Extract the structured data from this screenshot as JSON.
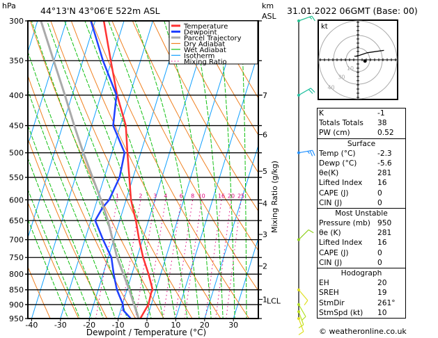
{
  "header": {
    "pressure_unit": "hPa",
    "location": "44°13'N  43°06'E  522m  ASL",
    "height_unit_line1": "km",
    "height_unit_line2": "ASL",
    "datetime": "31.01.2022  06GMT  (Base: 00)"
  },
  "chart_data": {
    "type": "line",
    "subtype": "skew-T log-P",
    "xlabel": "Dewpoint / Temperature (°C)",
    "ylabel": "hPa",
    "right_label": "Mixing Ratio (g/kg)",
    "xlim": [
      -40,
      38
    ],
    "ylim_hpa": [
      950,
      300
    ],
    "x_ticks": [
      -40,
      -30,
      -20,
      -10,
      0,
      10,
      20,
      30
    ],
    "x_tick_labels": [
      "-40",
      "-30",
      "-20",
      "-10",
      "0",
      "10",
      "20",
      "30"
    ],
    "pressure_levels": [
      300,
      350,
      400,
      450,
      500,
      550,
      600,
      650,
      700,
      750,
      800,
      850,
      900,
      950
    ],
    "pressure_labels": [
      "300",
      "350",
      "400",
      "450",
      "500",
      "550",
      "600",
      "650",
      "700",
      "750",
      "800",
      "850",
      "900",
      "950"
    ],
    "km_levels": [
      {
        "label": "7",
        "p": 400
      },
      {
        "label": "6",
        "p": 466
      },
      {
        "label": "5",
        "p": 537
      },
      {
        "label": "4",
        "p": 608
      },
      {
        "label": "3",
        "p": 686
      },
      {
        "label": "2",
        "p": 775
      },
      {
        "label": "1",
        "p": 882
      }
    ],
    "lcl_label": "LCL",
    "mixing_ratio_labels": [
      "1",
      "2",
      "3",
      "4",
      "6",
      "8",
      "10",
      "16",
      "20",
      "25"
    ],
    "mixing_ratio_values": [
      1,
      2,
      3,
      4,
      6,
      8,
      10,
      16,
      20,
      25
    ],
    "legend": [
      {
        "label": "Temperature",
        "color": "#ff3333"
      },
      {
        "label": "Dewpoint",
        "color": "#2040ff"
      },
      {
        "label": "Parcel Trajectory",
        "color": "#aaaaaa"
      },
      {
        "label": "Dry Adiabat",
        "color": "#f08020"
      },
      {
        "label": "Wet Adiabat",
        "color": "#10c010"
      },
      {
        "label": "Isotherm",
        "color": "#10a0ff"
      },
      {
        "label": "Mixing Ratio",
        "color": "#e0007a"
      }
    ],
    "series": [
      {
        "name": "Temperature",
        "color": "#ff3333",
        "p": [
          950,
          930,
          900,
          860,
          850,
          800,
          750,
          700,
          650,
          600,
          550,
          500,
          450,
          400,
          350,
          300
        ],
        "t": [
          -2.3,
          -1.8,
          -1.0,
          -1.3,
          -1.1,
          -4.2,
          -7.9,
          -11.2,
          -14.4,
          -18.3,
          -21.3,
          -24.6,
          -28.1,
          -34.4,
          -40.3,
          -47.0
        ]
      },
      {
        "name": "Dewpoint",
        "color": "#2040ff",
        "p": [
          950,
          920,
          900,
          850,
          800,
          750,
          700,
          650,
          620,
          600,
          550,
          500,
          450,
          400,
          350,
          300
        ],
        "t": [
          -5.6,
          -9.1,
          -9.8,
          -13.5,
          -16.3,
          -18.9,
          -23.7,
          -28.5,
          -27.4,
          -25.9,
          -24.7,
          -25.6,
          -32.5,
          -34.6,
          -43.0,
          -51.5
        ]
      },
      {
        "name": "Parcel Trajectory",
        "color": "#aaaaaa",
        "p": [
          950,
          850,
          750,
          650,
          600,
          500,
          450,
          400,
          350,
          300
        ],
        "t": [
          -2.9,
          -9.2,
          -16.9,
          -24.1,
          -28.7,
          -39.9,
          -46.0,
          -52.5,
          -60.1,
          -68.8
        ]
      }
    ],
    "wind_barbs": [
      {
        "p": 300,
        "dir": 250,
        "speed_kt": 15,
        "color": "#20c090"
      },
      {
        "p": 400,
        "dir": 240,
        "speed_kt": 20,
        "color": "#20c0a0"
      },
      {
        "p": 500,
        "dir": 260,
        "speed_kt": 25,
        "color": "#2090ff"
      },
      {
        "p": 700,
        "dir": 225,
        "speed_kt": 10,
        "color": "#90d020"
      },
      {
        "p": 850,
        "dir": 320,
        "speed_kt": 10,
        "color": "#e0e020"
      },
      {
        "p": 900,
        "dir": 330,
        "speed_kt": 10,
        "color": "#b0e020"
      },
      {
        "p": 925,
        "dir": 340,
        "speed_kt": 10,
        "color": "#c0e020"
      },
      {
        "p": 950,
        "dir": 340,
        "speed_kt": 10,
        "color": "#e0e020"
      }
    ],
    "hodograph": {
      "unit_label": "kt",
      "ring_labels": [
        "10",
        "30",
        "40"
      ],
      "trace_kt": [
        [
          -3,
          3
        ],
        [
          -1,
          3
        ],
        [
          8,
          6
        ],
        [
          22,
          8
        ]
      ],
      "storm_motion_kt": [
        6,
        -1
      ]
    }
  },
  "indices": {
    "general": [
      {
        "label": "K",
        "value": "-1"
      },
      {
        "label": "Totals Totals",
        "value": "38"
      },
      {
        "label": "PW (cm)",
        "value": "0.52"
      }
    ],
    "surface": {
      "title": "Surface",
      "rows": [
        {
          "label": "Temp (°C)",
          "value": "-2.3"
        },
        {
          "label": "Dewp (°C)",
          "value": "-5.6"
        },
        {
          "label": "θe(K)",
          "value": "281"
        },
        {
          "label": "Lifted Index",
          "value": "16"
        },
        {
          "label": "CAPE (J)",
          "value": "0"
        },
        {
          "label": "CIN (J)",
          "value": "0"
        }
      ]
    },
    "most_unstable": {
      "title": "Most Unstable",
      "rows": [
        {
          "label": "Pressure (mb)",
          "value": "950"
        },
        {
          "label": "θe (K)",
          "value": "281"
        },
        {
          "label": "Lifted Index",
          "value": "16"
        },
        {
          "label": "CAPE (J)",
          "value": "0"
        },
        {
          "label": "CIN (J)",
          "value": "0"
        }
      ]
    },
    "hodograph": {
      "title": "Hodograph",
      "rows": [
        {
          "label": "EH",
          "value": "20"
        },
        {
          "label": "SREH",
          "value": "19"
        },
        {
          "label": "StmDir",
          "value": "261°"
        },
        {
          "label": "StmSpd (kt)",
          "value": "10"
        }
      ]
    }
  },
  "footer": {
    "copyright": "© weatheronline.co.uk"
  }
}
